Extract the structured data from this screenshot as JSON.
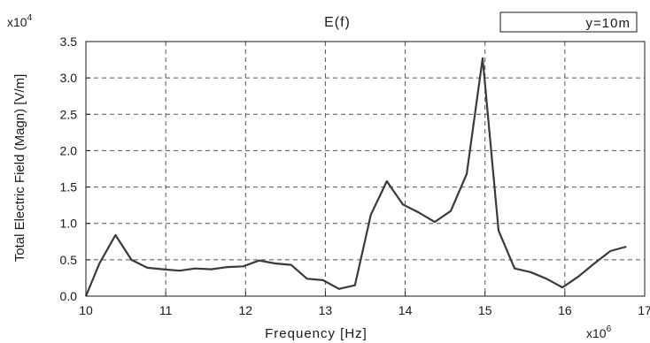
{
  "chart_data": {
    "type": "line",
    "title": "E(f)",
    "xlabel": "Frequency [Hz]",
    "ylabel": "Total Electric Field (Magn) [V/m]",
    "x_multiplier_base": "x10",
    "x_multiplier_exp": "6",
    "y_multiplier_base": "x10",
    "y_multiplier_exp": "4",
    "xlim": [
      10,
      17
    ],
    "ylim": [
      0.0,
      3.5
    ],
    "x_ticks": [
      "10",
      "11",
      "12",
      "13",
      "14",
      "15",
      "16",
      "17"
    ],
    "y_ticks": [
      "0.0",
      "0.5",
      "1.0",
      "1.5",
      "2.0",
      "2.5",
      "3.0",
      "3.5"
    ],
    "grid": true,
    "legend_position": "top-right",
    "series": [
      {
        "name": "y=10m",
        "color": "#3a3a3a",
        "x": [
          10.0,
          10.17,
          10.37,
          10.57,
          10.77,
          10.97,
          11.17,
          11.37,
          11.57,
          11.77,
          11.97,
          12.17,
          12.37,
          12.57,
          12.77,
          12.97,
          13.17,
          13.37,
          13.57,
          13.77,
          13.97,
          14.17,
          14.37,
          14.57,
          14.77,
          14.97,
          15.17,
          15.37,
          15.57,
          15.77,
          15.97,
          16.17,
          16.37,
          16.57,
          16.77
        ],
        "y": [
          0.0,
          0.45,
          0.84,
          0.5,
          0.39,
          0.37,
          0.35,
          0.38,
          0.37,
          0.4,
          0.41,
          0.49,
          0.45,
          0.43,
          0.24,
          0.22,
          0.1,
          0.15,
          1.12,
          1.58,
          1.26,
          1.15,
          1.02,
          1.17,
          1.68,
          3.27,
          0.9,
          0.38,
          0.33,
          0.24,
          0.12,
          0.27,
          0.45,
          0.62,
          0.68
        ]
      }
    ]
  }
}
